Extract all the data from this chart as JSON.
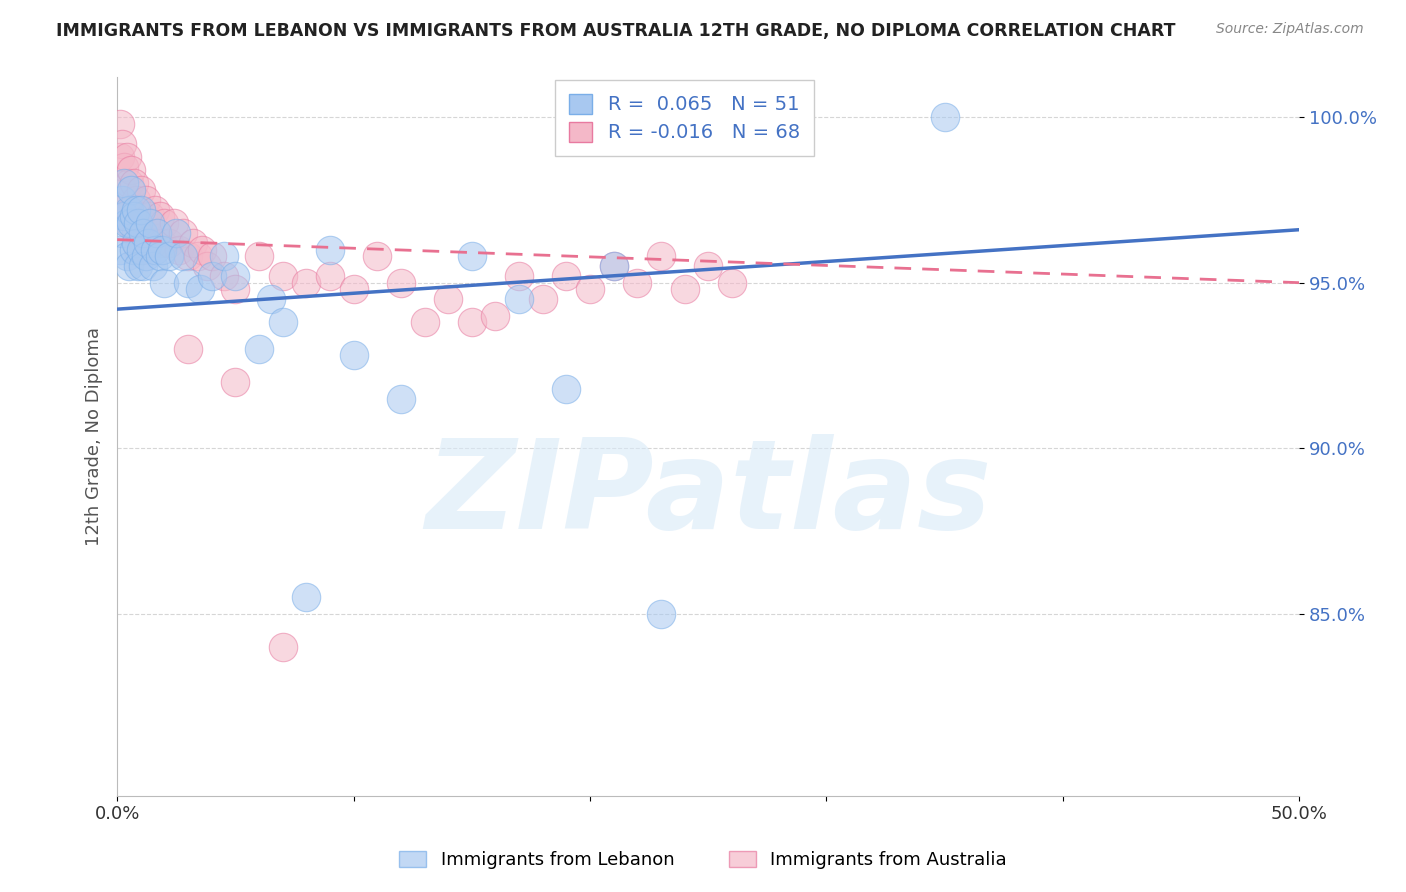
{
  "title": "IMMIGRANTS FROM LEBANON VS IMMIGRANTS FROM AUSTRALIA 12TH GRADE, NO DIPLOMA CORRELATION CHART",
  "source": "Source: ZipAtlas.com",
  "ylabel": "12th Grade, No Diploma",
  "xlim": [
    0.0,
    0.5
  ],
  "ylim": [
    0.795,
    1.012
  ],
  "yticks": [
    0.85,
    0.9,
    0.95,
    1.0
  ],
  "yticklabels": [
    "85.0%",
    "90.0%",
    "95.0%",
    "100.0%"
  ],
  "lebanon_color": "#a8c8f0",
  "lebanon_edge": "#7aaee8",
  "australia_color": "#f4b8c8",
  "australia_edge": "#e87aa0",
  "line_lebanon_color": "#4472c4",
  "line_australia_color": "#e87090",
  "lebanon_R": 0.065,
  "lebanon_N": 51,
  "australia_R": -0.016,
  "australia_N": 68,
  "watermark_zip": "ZIP",
  "watermark_atlas": "atlas",
  "legend_blue_text": "R =  0.065   N = 51",
  "legend_pink_text": "R = -0.016   N = 68",
  "bottom_legend_lebanon": "Immigrants from Lebanon",
  "bottom_legend_australia": "Immigrants from Australia",
  "lebanon_line_x0": 0.0,
  "lebanon_line_y0": 0.942,
  "lebanon_line_x1": 0.5,
  "lebanon_line_y1": 0.966,
  "australia_line_x0": 0.0,
  "australia_line_y0": 0.963,
  "australia_line_x1": 0.5,
  "australia_line_y1": 0.95,
  "lebanon_scatter_x": [
    0.001,
    0.002,
    0.002,
    0.003,
    0.003,
    0.004,
    0.004,
    0.005,
    0.005,
    0.006,
    0.006,
    0.007,
    0.007,
    0.008,
    0.008,
    0.009,
    0.009,
    0.01,
    0.01,
    0.011,
    0.011,
    0.012,
    0.013,
    0.014,
    0.015,
    0.016,
    0.017,
    0.018,
    0.019,
    0.02,
    0.022,
    0.025,
    0.028,
    0.03,
    0.035,
    0.04,
    0.045,
    0.05,
    0.06,
    0.065,
    0.07,
    0.08,
    0.09,
    0.1,
    0.12,
    0.15,
    0.17,
    0.19,
    0.21,
    0.23,
    0.35
  ],
  "lebanon_scatter_y": [
    0.96,
    0.965,
    0.975,
    0.97,
    0.98,
    0.958,
    0.968,
    0.972,
    0.955,
    0.968,
    0.978,
    0.96,
    0.97,
    0.962,
    0.972,
    0.955,
    0.968,
    0.96,
    0.972,
    0.955,
    0.965,
    0.958,
    0.962,
    0.968,
    0.955,
    0.96,
    0.965,
    0.958,
    0.96,
    0.95,
    0.958,
    0.965,
    0.958,
    0.95,
    0.948,
    0.952,
    0.958,
    0.952,
    0.93,
    0.945,
    0.938,
    0.855,
    0.96,
    0.928,
    0.915,
    0.958,
    0.945,
    0.918,
    0.955,
    0.85,
    1.0
  ],
  "australia_scatter_x": [
    0.001,
    0.001,
    0.002,
    0.002,
    0.003,
    0.003,
    0.004,
    0.004,
    0.005,
    0.005,
    0.006,
    0.006,
    0.007,
    0.007,
    0.008,
    0.008,
    0.009,
    0.009,
    0.01,
    0.01,
    0.011,
    0.011,
    0.012,
    0.012,
    0.013,
    0.014,
    0.015,
    0.016,
    0.017,
    0.018,
    0.019,
    0.02,
    0.022,
    0.024,
    0.026,
    0.028,
    0.03,
    0.032,
    0.034,
    0.036,
    0.038,
    0.04,
    0.045,
    0.05,
    0.06,
    0.07,
    0.08,
    0.09,
    0.1,
    0.11,
    0.12,
    0.13,
    0.14,
    0.15,
    0.16,
    0.17,
    0.18,
    0.19,
    0.2,
    0.21,
    0.22,
    0.23,
    0.24,
    0.25,
    0.26,
    0.03,
    0.05,
    0.07
  ],
  "australia_scatter_y": [
    0.988,
    0.998,
    0.978,
    0.992,
    0.97,
    0.985,
    0.975,
    0.988,
    0.968,
    0.98,
    0.972,
    0.984,
    0.97,
    0.98,
    0.965,
    0.975,
    0.96,
    0.972,
    0.965,
    0.978,
    0.96,
    0.97,
    0.965,
    0.975,
    0.968,
    0.97,
    0.962,
    0.972,
    0.965,
    0.97,
    0.962,
    0.968,
    0.962,
    0.968,
    0.96,
    0.965,
    0.958,
    0.962,
    0.958,
    0.96,
    0.955,
    0.958,
    0.952,
    0.948,
    0.958,
    0.952,
    0.95,
    0.952,
    0.948,
    0.958,
    0.95,
    0.938,
    0.945,
    0.938,
    0.94,
    0.952,
    0.945,
    0.952,
    0.948,
    0.955,
    0.95,
    0.958,
    0.948,
    0.955,
    0.95,
    0.93,
    0.92,
    0.84
  ]
}
